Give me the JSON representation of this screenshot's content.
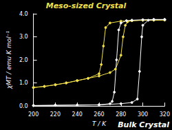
{
  "chart_data": {
    "type": "line",
    "xlabel": "T / K",
    "ylabel": "χMT / emu K mol⁻¹",
    "xlim": [
      200,
      320
    ],
    "xticks": [
      200,
      220,
      240,
      260,
      280,
      300,
      320
    ],
    "ylim": [
      0,
      4
    ],
    "yticks": [
      {
        "value": 0,
        "label": "0.0"
      },
      {
        "value": 1,
        "label": "1.0"
      },
      {
        "value": 2,
        "label": "2.0"
      },
      {
        "value": 3,
        "label": "3.0"
      },
      {
        "value": 4,
        "label": "4.0"
      }
    ],
    "grid": false,
    "marker": "circle",
    "annotations": [
      {
        "text": "Meso-sized Crystal",
        "color": "#f2e04a"
      },
      {
        "text": "Bulk Crystal",
        "color": "#ffffff"
      }
    ],
    "series": [
      {
        "color": "#f2e04a",
        "x": [
          200,
          210,
          220,
          230,
          240,
          250,
          260,
          270,
          275,
          280,
          282,
          284,
          286,
          290,
          300,
          310,
          320,
          320,
          310,
          300,
          290,
          280,
          270,
          266,
          264,
          262,
          260,
          250,
          240,
          230,
          220,
          210,
          200
        ],
        "values": [
          0.8,
          0.85,
          0.92,
          1.0,
          1.1,
          1.2,
          1.3,
          1.45,
          1.6,
          2.2,
          3.0,
          3.5,
          3.65,
          3.7,
          3.72,
          3.73,
          3.73,
          3.73,
          3.72,
          3.72,
          3.7,
          3.68,
          3.6,
          3.4,
          2.6,
          1.8,
          1.4,
          1.2,
          1.1,
          1.0,
          0.92,
          0.85,
          0.8
        ]
      },
      {
        "color": "#ffffff",
        "x": [
          200,
          220,
          240,
          260,
          280,
          290,
          295,
          297,
          299,
          300,
          305,
          310,
          320,
          320,
          310,
          300,
          290,
          285,
          280,
          278,
          276,
          274,
          272,
          270,
          260,
          240,
          220,
          200
        ],
        "values": [
          0.02,
          0.03,
          0.04,
          0.05,
          0.1,
          0.15,
          0.3,
          1.5,
          3.0,
          3.5,
          3.72,
          3.75,
          3.75,
          3.75,
          3.75,
          3.74,
          3.72,
          3.7,
          3.6,
          3.3,
          2.0,
          0.6,
          0.2,
          0.1,
          0.05,
          0.04,
          0.03,
          0.02
        ]
      }
    ]
  }
}
